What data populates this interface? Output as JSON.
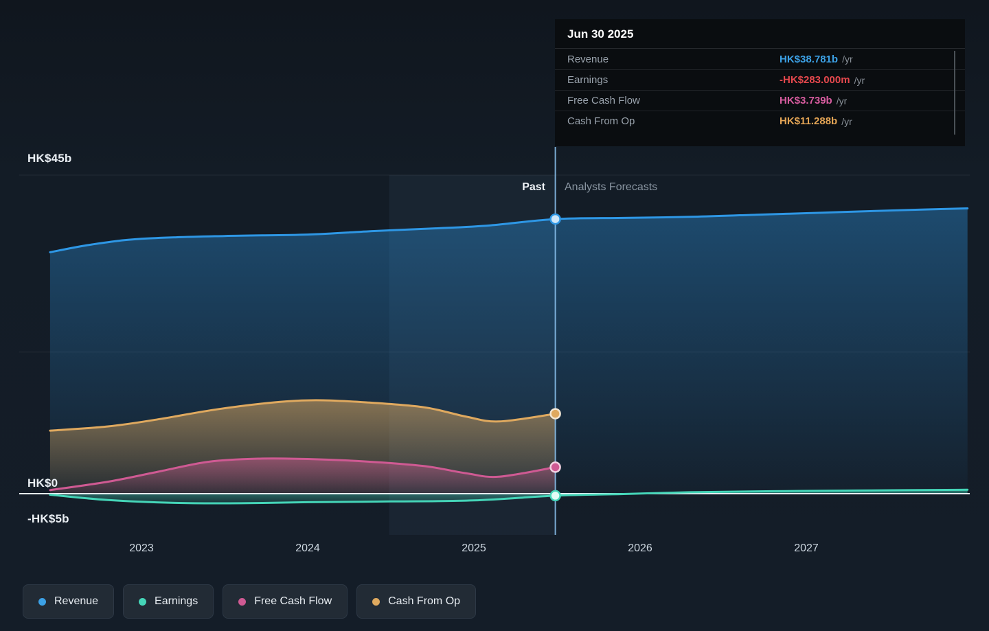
{
  "tooltip": {
    "date": "Jun 30 2025",
    "rows": [
      {
        "label": "Revenue",
        "value": "HK$38.781b",
        "suffix": "/yr",
        "color": "#3ca1e6"
      },
      {
        "label": "Earnings",
        "value": "-HK$283.000m",
        "suffix": "/yr",
        "color": "#e5484d"
      },
      {
        "label": "Free Cash Flow",
        "value": "HK$3.739b",
        "suffix": "/yr",
        "color": "#d75c9f"
      },
      {
        "label": "Cash From Op",
        "value": "HK$11.288b",
        "suffix": "/yr",
        "color": "#e3a455"
      }
    ]
  },
  "sections": {
    "past": "Past",
    "forecast": "Analysts Forecasts"
  },
  "axis": {
    "y_top": "HK$45b",
    "y_zero": "HK$0",
    "y_bottom": "-HK$5b",
    "x_ticks": [
      "2023",
      "2024",
      "2025",
      "2026",
      "2027"
    ]
  },
  "legend": [
    {
      "label": "Revenue",
      "color": "#3ca1e6"
    },
    {
      "label": "Earnings",
      "color": "#45d5b8"
    },
    {
      "label": "Free Cash Flow",
      "color": "#cf5a93"
    },
    {
      "label": "Cash From Op",
      "color": "#dfa95f"
    }
  ],
  "chart_data": {
    "type": "line",
    "unit": "HK$ billions per year",
    "title": "Past and forecast Revenue, Earnings, Free Cash Flow and Cash From Op",
    "ylim": [
      -5,
      45
    ],
    "gridlines_y": [
      45,
      20,
      0
    ],
    "x_axis_years": [
      2023,
      2024,
      2025,
      2026,
      2027
    ],
    "divider_x": 2025.49,
    "divider_date": "Jun 30 2025",
    "legend_position": "bottom",
    "series": [
      {
        "name": "Revenue",
        "color": "#2e97e5",
        "marker_fill": "#cfe7f9",
        "marker_stroke": "#2e97e5",
        "x": [
          2022.45,
          2022.7,
          2023.0,
          2023.5,
          2024.0,
          2024.4,
          2024.8,
          2025.1,
          2025.49,
          2025.9,
          2026.3,
          2026.7,
          2027.1,
          2027.5,
          2027.97
        ],
        "y": [
          34.1,
          35.2,
          36.0,
          36.4,
          36.6,
          37.1,
          37.5,
          37.9,
          38.781,
          38.95,
          39.1,
          39.4,
          39.7,
          40.0,
          40.3
        ]
      },
      {
        "name": "Cash From Op",
        "color": "#dfa95f",
        "marker_fill": "#dfa95f",
        "marker_stroke": "#f3e7d4",
        "x": [
          2022.45,
          2022.8,
          2023.1,
          2023.45,
          2023.8,
          2024.05,
          2024.35,
          2024.7,
          2024.95,
          2025.15,
          2025.49
        ],
        "y": [
          8.9,
          9.5,
          10.5,
          11.9,
          12.9,
          13.2,
          12.9,
          12.2,
          10.9,
          10.2,
          11.288
        ]
      },
      {
        "name": "Free Cash Flow",
        "color": "#cf5a93",
        "marker_fill": "#cf5a93",
        "marker_stroke": "#f3d3e2",
        "x": [
          2022.45,
          2022.8,
          2023.1,
          2023.4,
          2023.7,
          2024.0,
          2024.35,
          2024.7,
          2024.95,
          2025.15,
          2025.49
        ],
        "y": [
          0.5,
          1.7,
          3.1,
          4.5,
          4.95,
          4.9,
          4.55,
          3.9,
          2.9,
          2.4,
          3.739
        ]
      },
      {
        "name": "Earnings",
        "color": "#45d5b8",
        "marker_fill": "#e2fbf6",
        "marker_stroke": "#45d5b8",
        "x": [
          2022.45,
          2022.8,
          2023.2,
          2023.6,
          2024.0,
          2024.5,
          2025.0,
          2025.49,
          2025.9,
          2026.3,
          2026.8,
          2027.3,
          2027.97
        ],
        "y": [
          -0.15,
          -0.9,
          -1.3,
          -1.35,
          -1.2,
          -1.1,
          -0.95,
          -0.283,
          -0.05,
          0.2,
          0.35,
          0.45,
          0.55
        ]
      }
    ],
    "values_at_divider": {
      "Revenue": 38.781,
      "Earnings": -0.283,
      "Free Cash Flow": 3.739,
      "Cash From Op": 11.288
    }
  }
}
